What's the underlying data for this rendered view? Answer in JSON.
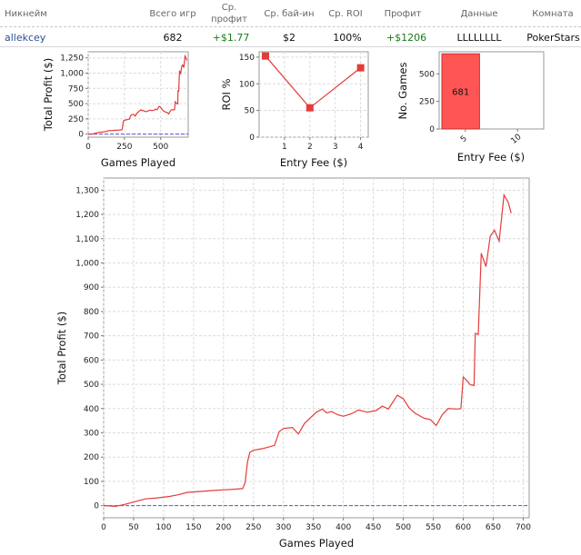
{
  "table": {
    "headers": {
      "nickname": "Никнейм",
      "total_games": "Всего игр",
      "avg_profit": "Ср. профит",
      "avg_buyin": "Ср. бай-ин",
      "avg_roi": "Ср. ROI",
      "profit": "Профит",
      "data": "Данные",
      "room": "Комната"
    },
    "row": {
      "nickname": "allekcey",
      "total_games": "682",
      "avg_profit": "+$1.77",
      "avg_buyin": "$2",
      "avg_roi": "100%",
      "profit": "+$1206",
      "data": "LLLLLLLL",
      "room": "PokerStars"
    }
  },
  "colors": {
    "line": "#e53b3b",
    "zero_line": "#5555dd",
    "bar": "#ff5555",
    "grid": "#dcdcdc",
    "profit_green": "#1a7a1a",
    "link": "#2a4f8f"
  },
  "chart_data": [
    {
      "id": "profit_small",
      "type": "line",
      "xlabel": "Games Played",
      "ylabel": "Total Profit ($)",
      "xlim": [
        0,
        690
      ],
      "ylim": [
        -50,
        1350
      ],
      "xticks": [
        0,
        250,
        500
      ],
      "yticks": [
        0,
        250,
        500,
        750,
        1000,
        1250
      ],
      "ytick_labels": [
        "0",
        "250",
        "500",
        "750",
        "1,000",
        "1,250"
      ],
      "grid": true,
      "zero_line": true,
      "points": [
        [
          0,
          0
        ],
        [
          20,
          -3
        ],
        [
          35,
          5
        ],
        [
          55,
          18
        ],
        [
          70,
          28
        ],
        [
          90,
          32
        ],
        [
          110,
          38
        ],
        [
          125,
          45
        ],
        [
          140,
          55
        ],
        [
          160,
          58
        ],
        [
          180,
          62
        ],
        [
          200,
          65
        ],
        [
          220,
          68
        ],
        [
          232,
          70
        ],
        [
          236,
          95
        ],
        [
          240,
          180
        ],
        [
          244,
          220
        ],
        [
          250,
          228
        ],
        [
          265,
          235
        ],
        [
          285,
          248
        ],
        [
          293,
          305
        ],
        [
          300,
          318
        ],
        [
          315,
          322
        ],
        [
          325,
          295
        ],
        [
          335,
          338
        ],
        [
          345,
          362
        ],
        [
          355,
          385
        ],
        [
          365,
          398
        ],
        [
          372,
          382
        ],
        [
          380,
          388
        ],
        [
          390,
          375
        ],
        [
          400,
          368
        ],
        [
          415,
          380
        ],
        [
          425,
          394
        ],
        [
          440,
          385
        ],
        [
          455,
          392
        ],
        [
          465,
          410
        ],
        [
          475,
          398
        ],
        [
          490,
          455
        ],
        [
          500,
          440
        ],
        [
          510,
          402
        ],
        [
          520,
          380
        ],
        [
          535,
          360
        ],
        [
          545,
          355
        ],
        [
          555,
          330
        ],
        [
          565,
          375
        ],
        [
          575,
          400
        ],
        [
          590,
          398
        ],
        [
          596,
          400
        ],
        [
          600,
          530
        ],
        [
          605,
          518
        ],
        [
          612,
          498
        ],
        [
          618,
          495
        ],
        [
          620,
          710
        ],
        [
          625,
          705
        ],
        [
          630,
          1040
        ],
        [
          638,
          985
        ],
        [
          645,
          1110
        ],
        [
          652,
          1135
        ],
        [
          660,
          1090
        ],
        [
          668,
          1280
        ],
        [
          675,
          1250
        ],
        [
          680,
          1205
        ]
      ]
    },
    {
      "id": "roi_by_fee",
      "type": "line",
      "xlabel": "Entry Fee ($)",
      "ylabel": "ROI %",
      "xlim": [
        0,
        4.3
      ],
      "ylim": [
        0,
        160
      ],
      "xticks": [
        1,
        2,
        3,
        4
      ],
      "yticks": [
        0,
        50,
        100,
        150
      ],
      "grid": true,
      "points": [
        [
          0.25,
          152
        ],
        [
          2,
          55
        ],
        [
          4,
          130
        ]
      ]
    },
    {
      "id": "games_by_fee",
      "type": "bar",
      "xlabel": "Entry Fee ($)",
      "ylabel": "No. Games",
      "categories": [
        "5",
        "10"
      ],
      "values": [
        681,
        0
      ],
      "data_labels": [
        "681",
        ""
      ],
      "ylim": [
        0,
        700
      ],
      "yticks": [
        0,
        250,
        500
      ],
      "grid": false
    },
    {
      "id": "profit_large",
      "type": "line",
      "xlabel": "Games Played",
      "ylabel": "Total Profit ($)",
      "xlim": [
        0,
        710
      ],
      "ylim": [
        -50,
        1350
      ],
      "xticks": [
        0,
        50,
        100,
        150,
        200,
        250,
        300,
        350,
        400,
        450,
        500,
        550,
        600,
        650,
        700
      ],
      "yticks": [
        0,
        100,
        200,
        300,
        400,
        500,
        600,
        700,
        800,
        900,
        1000,
        1100,
        1200,
        1300
      ],
      "ytick_labels": [
        "0",
        "100",
        "200",
        "300",
        "400",
        "500",
        "600",
        "700",
        "800",
        "900",
        "1,000",
        "1,100",
        "1,200",
        "1,300"
      ],
      "grid": true,
      "zero_line": true,
      "points": [
        [
          0,
          0
        ],
        [
          20,
          -3
        ],
        [
          35,
          5
        ],
        [
          55,
          18
        ],
        [
          70,
          28
        ],
        [
          90,
          32
        ],
        [
          110,
          38
        ],
        [
          125,
          45
        ],
        [
          140,
          55
        ],
        [
          160,
          58
        ],
        [
          180,
          62
        ],
        [
          200,
          65
        ],
        [
          220,
          68
        ],
        [
          232,
          70
        ],
        [
          236,
          95
        ],
        [
          240,
          180
        ],
        [
          244,
          220
        ],
        [
          250,
          228
        ],
        [
          265,
          235
        ],
        [
          285,
          248
        ],
        [
          293,
          305
        ],
        [
          300,
          318
        ],
        [
          315,
          322
        ],
        [
          325,
          295
        ],
        [
          335,
          338
        ],
        [
          345,
          362
        ],
        [
          355,
          385
        ],
        [
          365,
          398
        ],
        [
          372,
          382
        ],
        [
          380,
          388
        ],
        [
          390,
          375
        ],
        [
          400,
          368
        ],
        [
          415,
          380
        ],
        [
          425,
          394
        ],
        [
          440,
          385
        ],
        [
          455,
          392
        ],
        [
          465,
          410
        ],
        [
          475,
          398
        ],
        [
          490,
          455
        ],
        [
          500,
          440
        ],
        [
          510,
          402
        ],
        [
          520,
          380
        ],
        [
          535,
          360
        ],
        [
          545,
          355
        ],
        [
          555,
          330
        ],
        [
          565,
          375
        ],
        [
          575,
          400
        ],
        [
          590,
          398
        ],
        [
          596,
          400
        ],
        [
          600,
          530
        ],
        [
          605,
          518
        ],
        [
          612,
          498
        ],
        [
          618,
          495
        ],
        [
          620,
          710
        ],
        [
          625,
          705
        ],
        [
          630,
          1040
        ],
        [
          638,
          985
        ],
        [
          645,
          1110
        ],
        [
          652,
          1135
        ],
        [
          660,
          1090
        ],
        [
          668,
          1280
        ],
        [
          675,
          1250
        ],
        [
          680,
          1205
        ]
      ]
    }
  ]
}
